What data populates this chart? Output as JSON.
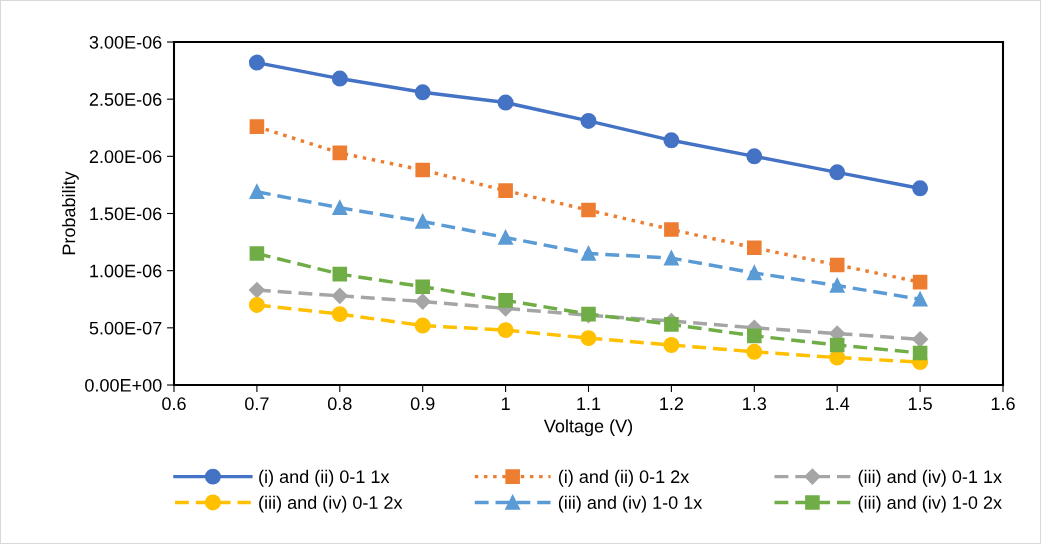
{
  "chart_data": {
    "type": "line",
    "xlabel": "Voltage (V)",
    "ylabel": "Probability",
    "x": [
      0.7,
      0.8,
      0.9,
      1.0,
      1.1,
      1.2,
      1.3,
      1.4,
      1.5
    ],
    "xlim": [
      0.6,
      1.6
    ],
    "xticks": [
      0.6,
      0.7,
      0.8,
      0.9,
      1,
      1.1,
      1.2,
      1.3,
      1.4,
      1.5,
      1.6
    ],
    "ylim": [
      0,
      3e-06
    ],
    "yticks": [
      {
        "value": 0,
        "label": "0.00E+00"
      },
      {
        "value": 5e-07,
        "label": "5.00E-07"
      },
      {
        "value": 1e-06,
        "label": "1.00E-06"
      },
      {
        "value": 1.5e-06,
        "label": "1.50E-06"
      },
      {
        "value": 2e-06,
        "label": "2.00E-06"
      },
      {
        "value": 2.5e-06,
        "label": "2.50E-06"
      },
      {
        "value": 3e-06,
        "label": "3.00E-06"
      }
    ],
    "grid": false,
    "legend": "bottom",
    "series": [
      {
        "name": "(i) and (ii) 0-1 1x",
        "color": "#4472c4",
        "marker": "circle",
        "line_style": "solid",
        "values": [
          2.82e-06,
          2.68e-06,
          2.56e-06,
          2.47e-06,
          2.31e-06,
          2.14e-06,
          2e-06,
          1.86e-06,
          1.72e-06
        ]
      },
      {
        "name": "(i) and (ii) 0-1 2x",
        "color": "#ed7d31",
        "marker": "square",
        "line_style": "dotted",
        "values": [
          2.26e-06,
          2.03e-06,
          1.88e-06,
          1.7e-06,
          1.53e-06,
          1.36e-06,
          1.2e-06,
          1.05e-06,
          9e-07
        ]
      },
      {
        "name": "(iii) and (iv) 0-1 1x",
        "color": "#a5a5a5",
        "marker": "diamond",
        "line_style": "dashed",
        "values": [
          8.3e-07,
          7.8e-07,
          7.3e-07,
          6.7e-07,
          6.1e-07,
          5.6e-07,
          5e-07,
          4.5e-07,
          4e-07
        ]
      },
      {
        "name": "(iii) and (iv) 0-1 2x",
        "color": "#ffc000",
        "marker": "circle",
        "line_style": "dashed",
        "values": [
          7e-07,
          6.2e-07,
          5.2e-07,
          4.8e-07,
          4.1e-07,
          3.5e-07,
          2.9e-07,
          2.4e-07,
          2e-07
        ]
      },
      {
        "name": "(iii) and (iv) 1-0 1x",
        "color": "#5b9bd5",
        "marker": "triangle",
        "line_style": "dashed",
        "values": [
          1.69e-06,
          1.55e-06,
          1.43e-06,
          1.29e-06,
          1.15e-06,
          1.11e-06,
          9.8e-07,
          8.7e-07,
          7.5e-07
        ]
      },
      {
        "name": "(iii) and (iv) 1-0 2x",
        "color": "#70ad47",
        "marker": "square",
        "line_style": "dashed",
        "values": [
          1.15e-06,
          9.7e-07,
          8.6e-07,
          7.4e-07,
          6.2e-07,
          5.3e-07,
          4.3e-07,
          3.5e-07,
          2.8e-07
        ]
      }
    ]
  }
}
